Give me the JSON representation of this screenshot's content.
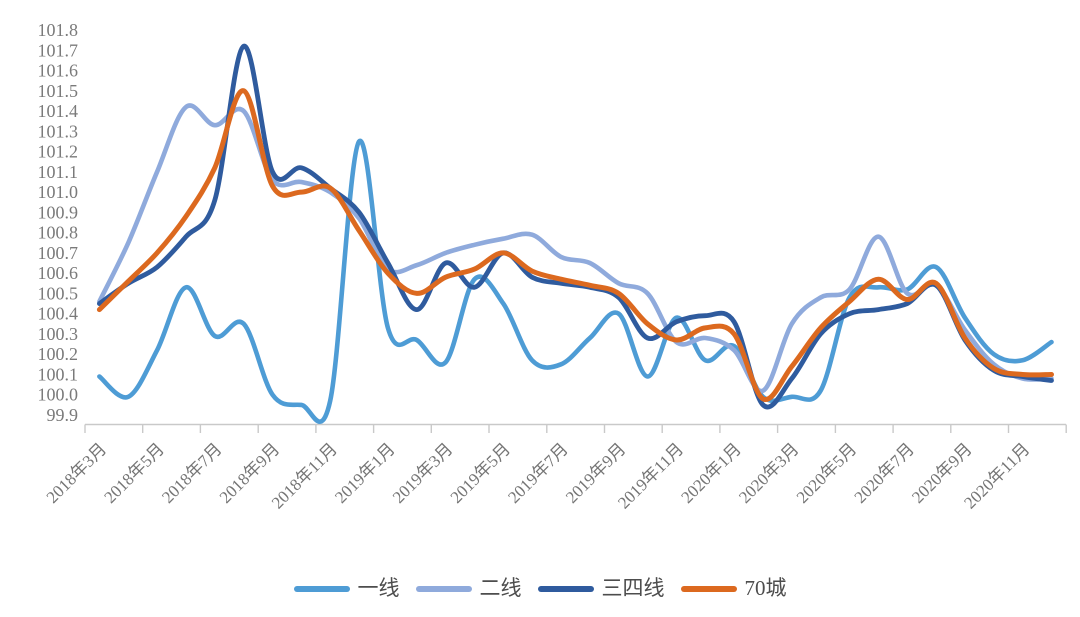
{
  "chart_data": {
    "type": "line",
    "title": "",
    "grid": false,
    "legend_position": "bottom",
    "ylim": [
      99.9,
      101.8
    ],
    "y_tick_step": 0.1,
    "y_tick_labels": [
      "101.8",
      "101.7",
      "101.6",
      "101.5",
      "101.4",
      "101.3",
      "101.2",
      "101.1",
      "101.0",
      "100.9",
      "100.8",
      "100.7",
      "100.6",
      "100.5",
      "100.4",
      "100.3",
      "100.2",
      "100.1",
      "100.0",
      "99.9"
    ],
    "x_months": [
      "2018年3月",
      "2018年4月",
      "2018年5月",
      "2018年6月",
      "2018年7月",
      "2018年8月",
      "2018年9月",
      "2018年10月",
      "2018年11月",
      "2018年12月",
      "2019年1月",
      "2019年2月",
      "2019年3月",
      "2019年4月",
      "2019年5月",
      "2019年6月",
      "2019年7月",
      "2019年8月",
      "2019年9月",
      "2019年10月",
      "2019年11月",
      "2019年12月",
      "2020年1月",
      "2020年2月",
      "2020年3月",
      "2020年4月",
      "2020年5月",
      "2020年6月",
      "2020年7月",
      "2020年8月",
      "2020年9月",
      "2020年10月",
      "2020年11月",
      "2020年12月"
    ],
    "x_tick_labels": [
      "2018年3月",
      "2018年5月",
      "2018年7月",
      "2018年9月",
      "2018年11月",
      "2019年1月",
      "2019年3月",
      "2019年5月",
      "2019年7月",
      "2019年9月",
      "2019年11月",
      "2020年1月",
      "2020年3月",
      "2020年5月",
      "2020年7月",
      "2020年9月",
      "2020年11月"
    ],
    "axis_color": "#c9c9c9",
    "series": [
      {
        "key": "tier1",
        "name": "一线",
        "color": "#4E9CD5",
        "values": [
          100.09,
          99.99,
          100.22,
          100.53,
          100.29,
          100.35,
          100.0,
          99.95,
          99.97,
          101.25,
          100.33,
          100.27,
          100.16,
          100.57,
          100.45,
          100.17,
          100.15,
          100.28,
          100.4,
          100.09,
          100.38,
          100.17,
          100.24,
          99.99,
          99.99,
          100.02,
          100.48,
          100.53,
          100.52,
          100.63,
          100.38,
          100.2,
          100.17,
          100.26
        ]
      },
      {
        "key": "tier2",
        "name": "二线",
        "color": "#8FAADC",
        "values": [
          100.46,
          100.75,
          101.1,
          101.42,
          101.33,
          101.4,
          101.06,
          101.05,
          101.0,
          100.87,
          100.62,
          100.64,
          100.7,
          100.74,
          100.77,
          100.79,
          100.68,
          100.65,
          100.55,
          100.5,
          100.26,
          100.28,
          100.22,
          100.02,
          100.35,
          100.48,
          100.52,
          100.78,
          100.5,
          100.54,
          100.32,
          100.15,
          100.08,
          100.08
        ]
      },
      {
        "key": "tier3-4",
        "name": "三四线",
        "color": "#2F5B9E",
        "values": [
          100.45,
          100.55,
          100.63,
          100.78,
          100.96,
          101.72,
          101.1,
          101.12,
          101.02,
          100.9,
          100.65,
          100.42,
          100.65,
          100.53,
          100.7,
          100.58,
          100.55,
          100.53,
          100.48,
          100.28,
          100.36,
          100.39,
          100.36,
          99.95,
          100.08,
          100.3,
          100.4,
          100.42,
          100.45,
          100.54,
          100.27,
          100.12,
          100.09,
          100.07
        ]
      },
      {
        "key": "cities70",
        "name": "70城",
        "color": "#DC691F",
        "values": [
          100.42,
          100.56,
          100.7,
          100.88,
          101.12,
          101.5,
          101.03,
          101.0,
          101.02,
          100.81,
          100.6,
          100.5,
          100.58,
          100.62,
          100.7,
          100.61,
          100.57,
          100.54,
          100.5,
          100.35,
          100.27,
          100.33,
          100.3,
          99.98,
          100.14,
          100.33,
          100.46,
          100.57,
          100.47,
          100.55,
          100.28,
          100.13,
          100.1,
          100.1
        ]
      }
    ]
  }
}
